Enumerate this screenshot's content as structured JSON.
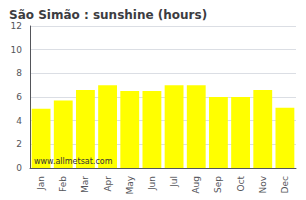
{
  "chart_data": {
    "type": "bar",
    "title": "São Simão : sunshine (hours)",
    "categories": [
      "Jan",
      "Feb",
      "Mar",
      "Apr",
      "May",
      "Jun",
      "Jul",
      "Aug",
      "Sep",
      "Oct",
      "Nov",
      "Dec"
    ],
    "values": [
      5.0,
      5.7,
      6.6,
      7.0,
      6.5,
      6.5,
      7.0,
      7.0,
      6.0,
      6.0,
      6.6,
      5.1
    ],
    "color": "#ffff00",
    "ylim": [
      0,
      12
    ],
    "yticks": [
      0,
      2,
      4,
      6,
      8,
      10,
      12
    ],
    "grid": true,
    "annotations": [
      "www.allmetsat.com"
    ]
  }
}
